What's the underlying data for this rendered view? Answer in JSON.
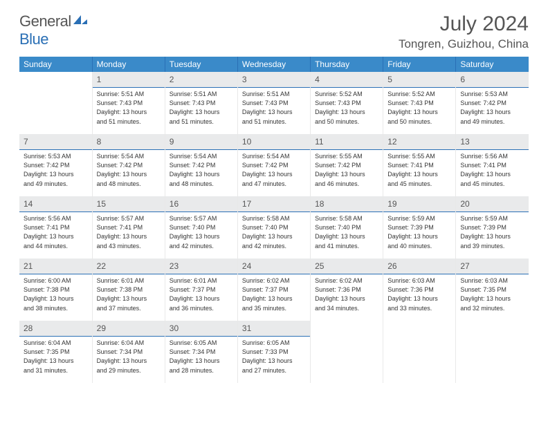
{
  "brand": {
    "part1": "General",
    "part2": "Blue"
  },
  "title": "July 2024",
  "location": "Tongren, Guizhou, China",
  "colors": {
    "header_bg": "#3a8ac9",
    "header_divider": "#2a6fb5",
    "daynum_bg": "#e9eaeb",
    "text": "#333333",
    "title_text": "#555555",
    "border_light": "#e8e8e8"
  },
  "day_headers": [
    "Sunday",
    "Monday",
    "Tuesday",
    "Wednesday",
    "Thursday",
    "Friday",
    "Saturday"
  ],
  "days": {
    "1": {
      "sunrise": "5:51 AM",
      "sunset": "7:43 PM",
      "dh": "13",
      "dm": "51"
    },
    "2": {
      "sunrise": "5:51 AM",
      "sunset": "7:43 PM",
      "dh": "13",
      "dm": "51"
    },
    "3": {
      "sunrise": "5:51 AM",
      "sunset": "7:43 PM",
      "dh": "13",
      "dm": "51"
    },
    "4": {
      "sunrise": "5:52 AM",
      "sunset": "7:43 PM",
      "dh": "13",
      "dm": "50"
    },
    "5": {
      "sunrise": "5:52 AM",
      "sunset": "7:43 PM",
      "dh": "13",
      "dm": "50"
    },
    "6": {
      "sunrise": "5:53 AM",
      "sunset": "7:42 PM",
      "dh": "13",
      "dm": "49"
    },
    "7": {
      "sunrise": "5:53 AM",
      "sunset": "7:42 PM",
      "dh": "13",
      "dm": "49"
    },
    "8": {
      "sunrise": "5:54 AM",
      "sunset": "7:42 PM",
      "dh": "13",
      "dm": "48"
    },
    "9": {
      "sunrise": "5:54 AM",
      "sunset": "7:42 PM",
      "dh": "13",
      "dm": "48"
    },
    "10": {
      "sunrise": "5:54 AM",
      "sunset": "7:42 PM",
      "dh": "13",
      "dm": "47"
    },
    "11": {
      "sunrise": "5:55 AM",
      "sunset": "7:42 PM",
      "dh": "13",
      "dm": "46"
    },
    "12": {
      "sunrise": "5:55 AM",
      "sunset": "7:41 PM",
      "dh": "13",
      "dm": "45"
    },
    "13": {
      "sunrise": "5:56 AM",
      "sunset": "7:41 PM",
      "dh": "13",
      "dm": "45"
    },
    "14": {
      "sunrise": "5:56 AM",
      "sunset": "7:41 PM",
      "dh": "13",
      "dm": "44"
    },
    "15": {
      "sunrise": "5:57 AM",
      "sunset": "7:41 PM",
      "dh": "13",
      "dm": "43"
    },
    "16": {
      "sunrise": "5:57 AM",
      "sunset": "7:40 PM",
      "dh": "13",
      "dm": "42"
    },
    "17": {
      "sunrise": "5:58 AM",
      "sunset": "7:40 PM",
      "dh": "13",
      "dm": "42"
    },
    "18": {
      "sunrise": "5:58 AM",
      "sunset": "7:40 PM",
      "dh": "13",
      "dm": "41"
    },
    "19": {
      "sunrise": "5:59 AM",
      "sunset": "7:39 PM",
      "dh": "13",
      "dm": "40"
    },
    "20": {
      "sunrise": "5:59 AM",
      "sunset": "7:39 PM",
      "dh": "13",
      "dm": "39"
    },
    "21": {
      "sunrise": "6:00 AM",
      "sunset": "7:38 PM",
      "dh": "13",
      "dm": "38"
    },
    "22": {
      "sunrise": "6:01 AM",
      "sunset": "7:38 PM",
      "dh": "13",
      "dm": "37"
    },
    "23": {
      "sunrise": "6:01 AM",
      "sunset": "7:37 PM",
      "dh": "13",
      "dm": "36"
    },
    "24": {
      "sunrise": "6:02 AM",
      "sunset": "7:37 PM",
      "dh": "13",
      "dm": "35"
    },
    "25": {
      "sunrise": "6:02 AM",
      "sunset": "7:36 PM",
      "dh": "13",
      "dm": "34"
    },
    "26": {
      "sunrise": "6:03 AM",
      "sunset": "7:36 PM",
      "dh": "13",
      "dm": "33"
    },
    "27": {
      "sunrise": "6:03 AM",
      "sunset": "7:35 PM",
      "dh": "13",
      "dm": "32"
    },
    "28": {
      "sunrise": "6:04 AM",
      "sunset": "7:35 PM",
      "dh": "13",
      "dm": "31"
    },
    "29": {
      "sunrise": "6:04 AM",
      "sunset": "7:34 PM",
      "dh": "13",
      "dm": "29"
    },
    "30": {
      "sunrise": "6:05 AM",
      "sunset": "7:34 PM",
      "dh": "13",
      "dm": "28"
    },
    "31": {
      "sunrise": "6:05 AM",
      "sunset": "7:33 PM",
      "dh": "13",
      "dm": "27"
    }
  },
  "labels": {
    "sunrise_prefix": "Sunrise: ",
    "sunset_prefix": "Sunset: ",
    "daylight_prefix": "Daylight: ",
    "hours_word": " hours",
    "and_word": "and ",
    "minutes_word": " minutes."
  },
  "grid": [
    [
      null,
      1,
      2,
      3,
      4,
      5,
      6
    ],
    [
      7,
      8,
      9,
      10,
      11,
      12,
      13
    ],
    [
      14,
      15,
      16,
      17,
      18,
      19,
      20
    ],
    [
      21,
      22,
      23,
      24,
      25,
      26,
      27
    ],
    [
      28,
      29,
      30,
      31,
      null,
      null,
      null
    ]
  ]
}
